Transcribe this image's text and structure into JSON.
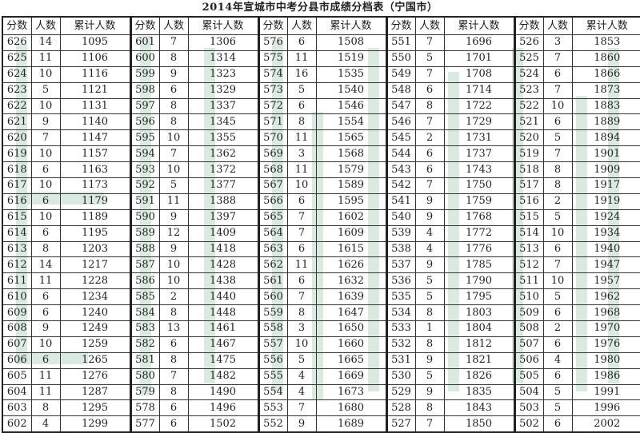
{
  "title": "2014年宣城市中考分县市成绩分档表（宁国市）",
  "headers": [
    "分数",
    "人数",
    "累计人数"
  ],
  "watermark_color": "#cfe3d6",
  "groups": [
    {
      "rows": [
        [
          "626",
          "14",
          "1095"
        ],
        [
          "625",
          "11",
          "1106"
        ],
        [
          "624",
          "10",
          "1116"
        ],
        [
          "623",
          "5",
          "1121"
        ],
        [
          "622",
          "10",
          "1131"
        ],
        [
          "621",
          "9",
          "1140"
        ],
        [
          "620",
          "7",
          "1147"
        ],
        [
          "619",
          "10",
          "1157"
        ],
        [
          "618",
          "6",
          "1163"
        ],
        [
          "617",
          "10",
          "1173"
        ],
        [
          "616",
          "6",
          "1179"
        ],
        [
          "615",
          "10",
          "1189"
        ],
        [
          "614",
          "6",
          "1195"
        ],
        [
          "613",
          "8",
          "1203"
        ],
        [
          "612",
          "14",
          "1217"
        ],
        [
          "611",
          "11",
          "1228"
        ],
        [
          "610",
          "6",
          "1234"
        ],
        [
          "609",
          "6",
          "1240"
        ],
        [
          "608",
          "9",
          "1249"
        ],
        [
          "607",
          "10",
          "1259"
        ],
        [
          "606",
          "6",
          "1265"
        ],
        [
          "605",
          "11",
          "1276"
        ],
        [
          "604",
          "11",
          "1287"
        ],
        [
          "603",
          "8",
          "1295"
        ],
        [
          "602",
          "4",
          "1299"
        ]
      ]
    },
    {
      "rows": [
        [
          "601",
          "7",
          "1306"
        ],
        [
          "600",
          "8",
          "1314"
        ],
        [
          "599",
          "9",
          "1323"
        ],
        [
          "598",
          "6",
          "1329"
        ],
        [
          "597",
          "8",
          "1337"
        ],
        [
          "596",
          "8",
          "1345"
        ],
        [
          "595",
          "10",
          "1355"
        ],
        [
          "594",
          "7",
          "1362"
        ],
        [
          "593",
          "10",
          "1372"
        ],
        [
          "592",
          "5",
          "1377"
        ],
        [
          "591",
          "11",
          "1388"
        ],
        [
          "590",
          "9",
          "1397"
        ],
        [
          "589",
          "12",
          "1409"
        ],
        [
          "588",
          "9",
          "1418"
        ],
        [
          "587",
          "10",
          "1428"
        ],
        [
          "586",
          "10",
          "1438"
        ],
        [
          "585",
          "2",
          "1440"
        ],
        [
          "584",
          "8",
          "1448"
        ],
        [
          "583",
          "13",
          "1461"
        ],
        [
          "582",
          "6",
          "1467"
        ],
        [
          "581",
          "8",
          "1475"
        ],
        [
          "580",
          "7",
          "1482"
        ],
        [
          "579",
          "8",
          "1490"
        ],
        [
          "578",
          "6",
          "1496"
        ],
        [
          "577",
          "6",
          "1502"
        ]
      ]
    },
    {
      "rows": [
        [
          "576",
          "6",
          "1508"
        ],
        [
          "575",
          "11",
          "1519"
        ],
        [
          "574",
          "16",
          "1535"
        ],
        [
          "573",
          "5",
          "1540"
        ],
        [
          "572",
          "6",
          "1546"
        ],
        [
          "571",
          "8",
          "1554"
        ],
        [
          "570",
          "11",
          "1565"
        ],
        [
          "569",
          "3",
          "1568"
        ],
        [
          "568",
          "11",
          "1579"
        ],
        [
          "567",
          "10",
          "1589"
        ],
        [
          "566",
          "6",
          "1595"
        ],
        [
          "565",
          "7",
          "1602"
        ],
        [
          "564",
          "7",
          "1609"
        ],
        [
          "563",
          "6",
          "1615"
        ],
        [
          "562",
          "11",
          "1626"
        ],
        [
          "561",
          "6",
          "1632"
        ],
        [
          "560",
          "7",
          "1639"
        ],
        [
          "559",
          "8",
          "1647"
        ],
        [
          "558",
          "3",
          "1650"
        ],
        [
          "557",
          "10",
          "1660"
        ],
        [
          "556",
          "5",
          "1665"
        ],
        [
          "555",
          "4",
          "1669"
        ],
        [
          "554",
          "4",
          "1673"
        ],
        [
          "553",
          "7",
          "1680"
        ],
        [
          "552",
          "9",
          "1689"
        ]
      ]
    },
    {
      "rows": [
        [
          "551",
          "7",
          "1696"
        ],
        [
          "550",
          "5",
          "1701"
        ],
        [
          "549",
          "7",
          "1708"
        ],
        [
          "548",
          "6",
          "1714"
        ],
        [
          "547",
          "8",
          "1722"
        ],
        [
          "546",
          "7",
          "1729"
        ],
        [
          "545",
          "2",
          "1731"
        ],
        [
          "544",
          "6",
          "1737"
        ],
        [
          "543",
          "6",
          "1743"
        ],
        [
          "542",
          "7",
          "1750"
        ],
        [
          "541",
          "9",
          "1759"
        ],
        [
          "540",
          "9",
          "1768"
        ],
        [
          "539",
          "4",
          "1772"
        ],
        [
          "538",
          "4",
          "1776"
        ],
        [
          "537",
          "9",
          "1785"
        ],
        [
          "536",
          "5",
          "1790"
        ],
        [
          "535",
          "5",
          "1795"
        ],
        [
          "534",
          "8",
          "1803"
        ],
        [
          "533",
          "1",
          "1804"
        ],
        [
          "532",
          "8",
          "1812"
        ],
        [
          "531",
          "9",
          "1821"
        ],
        [
          "530",
          "5",
          "1826"
        ],
        [
          "529",
          "9",
          "1835"
        ],
        [
          "528",
          "8",
          "1843"
        ],
        [
          "527",
          "7",
          "1850"
        ]
      ]
    },
    {
      "rows": [
        [
          "526",
          "3",
          "1853"
        ],
        [
          "525",
          "7",
          "1860"
        ],
        [
          "524",
          "6",
          "1866"
        ],
        [
          "523",
          "7",
          "1873"
        ],
        [
          "522",
          "10",
          "1883"
        ],
        [
          "521",
          "6",
          "1889"
        ],
        [
          "520",
          "5",
          "1894"
        ],
        [
          "519",
          "7",
          "1901"
        ],
        [
          "518",
          "8",
          "1909"
        ],
        [
          "517",
          "8",
          "1917"
        ],
        [
          "516",
          "2",
          "1919"
        ],
        [
          "515",
          "5",
          "1924"
        ],
        [
          "514",
          "10",
          "1934"
        ],
        [
          "513",
          "6",
          "1940"
        ],
        [
          "512",
          "7",
          "1947"
        ],
        [
          "511",
          "10",
          "1957"
        ],
        [
          "510",
          "5",
          "1962"
        ],
        [
          "509",
          "6",
          "1968"
        ],
        [
          "508",
          "2",
          "1970"
        ],
        [
          "507",
          "6",
          "1976"
        ],
        [
          "506",
          "4",
          "1980"
        ],
        [
          "505",
          "6",
          "1986"
        ],
        [
          "504",
          "5",
          "1991"
        ],
        [
          "503",
          "5",
          "1996"
        ],
        [
          "502",
          "6",
          "2002"
        ]
      ]
    }
  ]
}
